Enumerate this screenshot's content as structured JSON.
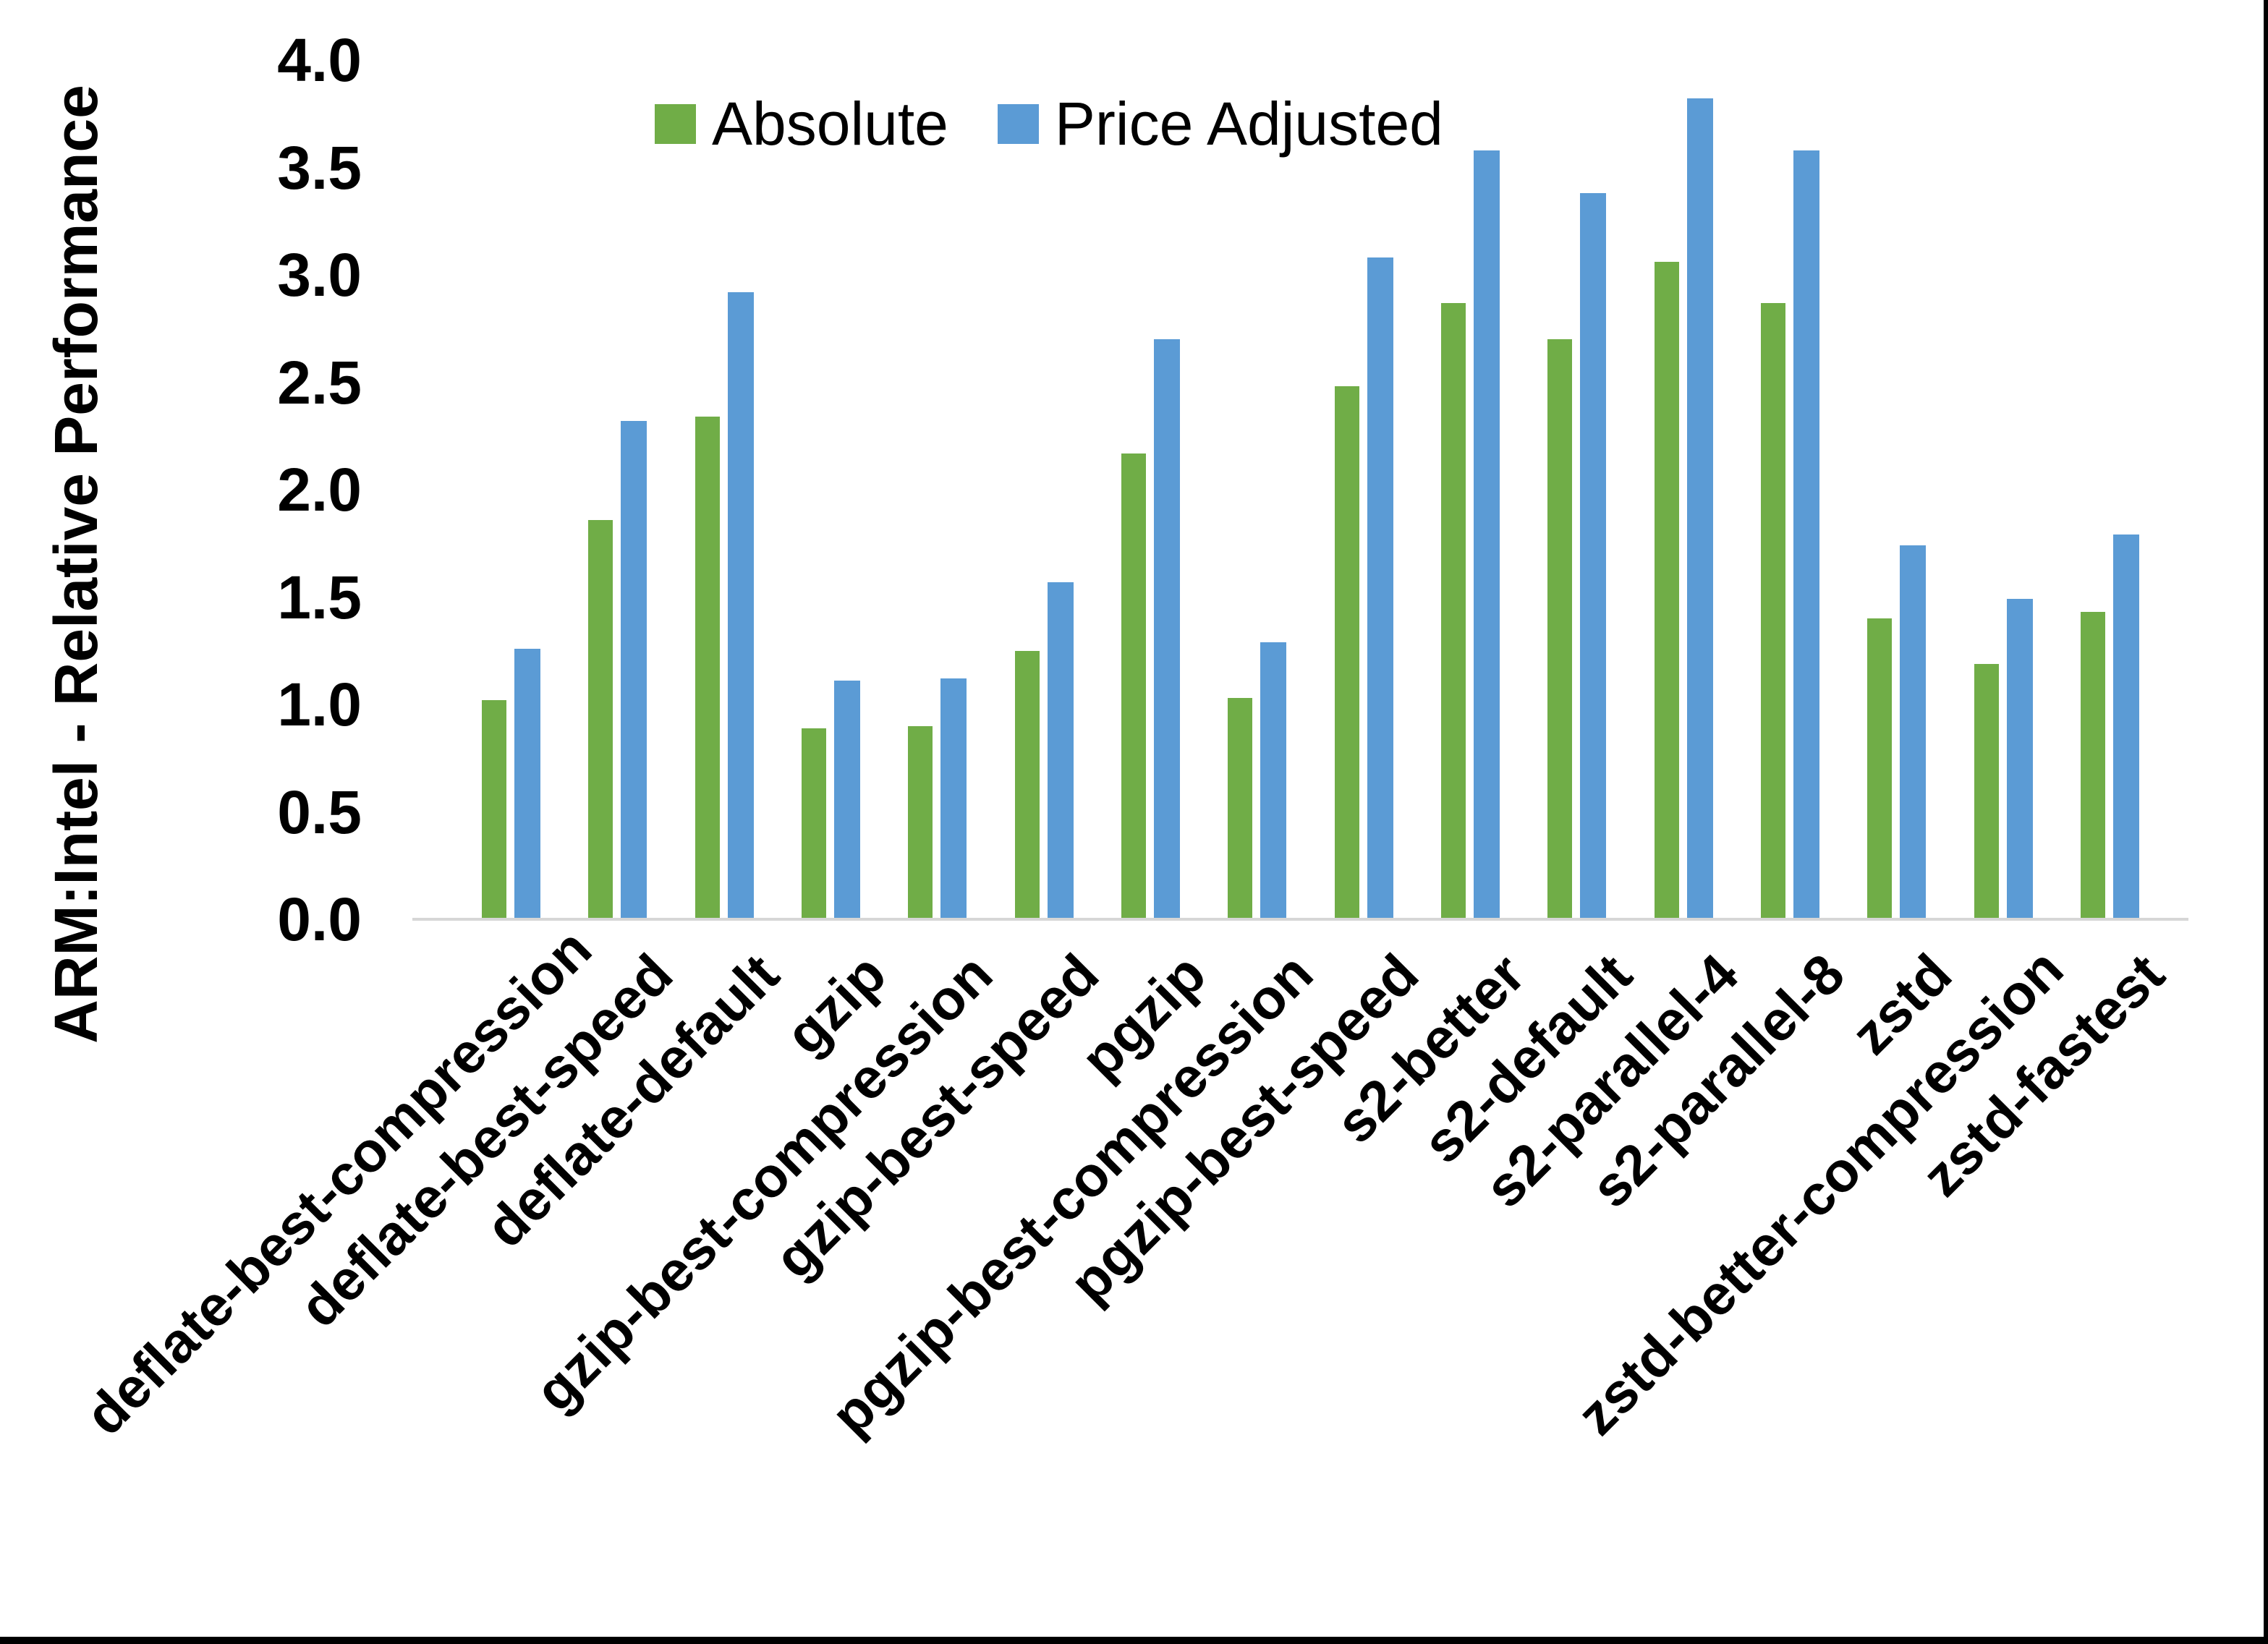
{
  "chart_data": {
    "type": "bar",
    "title": "",
    "xlabel": "",
    "ylabel": "ARM:Intel - Relative Performance",
    "ylim": [
      0.0,
      4.0
    ],
    "ytick_step": 0.5,
    "ytick_labels": [
      "0.0",
      "0.5",
      "1.0",
      "1.5",
      "2.0",
      "2.5",
      "3.0",
      "3.5",
      "4.0"
    ],
    "grid": false,
    "legend_position": "top-center",
    "axis_line_color": "#d6d6d6",
    "categories": [
      "deflate-best-compression",
      "deflate-best-speed",
      "deflate-default",
      "gzip",
      "gzip-best-compression",
      "gzip-best-speed",
      "pgzip",
      "pgzip-best-compression",
      "pgzip-best-speed",
      "s2-better",
      "s2-default",
      "s2-parallel-4",
      "s2-parallel-8",
      "zstd",
      "zstd-better-compression",
      "zstd-fastest"
    ],
    "series": [
      {
        "name": "Absolute",
        "color": "#70AD47",
        "values": [
          1.02,
          1.86,
          2.34,
          0.89,
          0.9,
          1.25,
          2.17,
          1.03,
          2.48,
          2.87,
          2.7,
          3.06,
          2.87,
          1.4,
          1.19,
          1.43
        ]
      },
      {
        "name": "Price Adjusted",
        "color": "#5B9BD5",
        "values": [
          1.26,
          2.32,
          2.92,
          1.11,
          1.12,
          1.57,
          2.7,
          1.29,
          3.08,
          3.58,
          3.38,
          3.82,
          3.58,
          1.74,
          1.49,
          1.79
        ]
      }
    ]
  },
  "legend": {
    "absolute_label": "Absolute",
    "price_adjusted_label": "Price Adjusted"
  },
  "frame": {
    "border_color": "#000000"
  }
}
